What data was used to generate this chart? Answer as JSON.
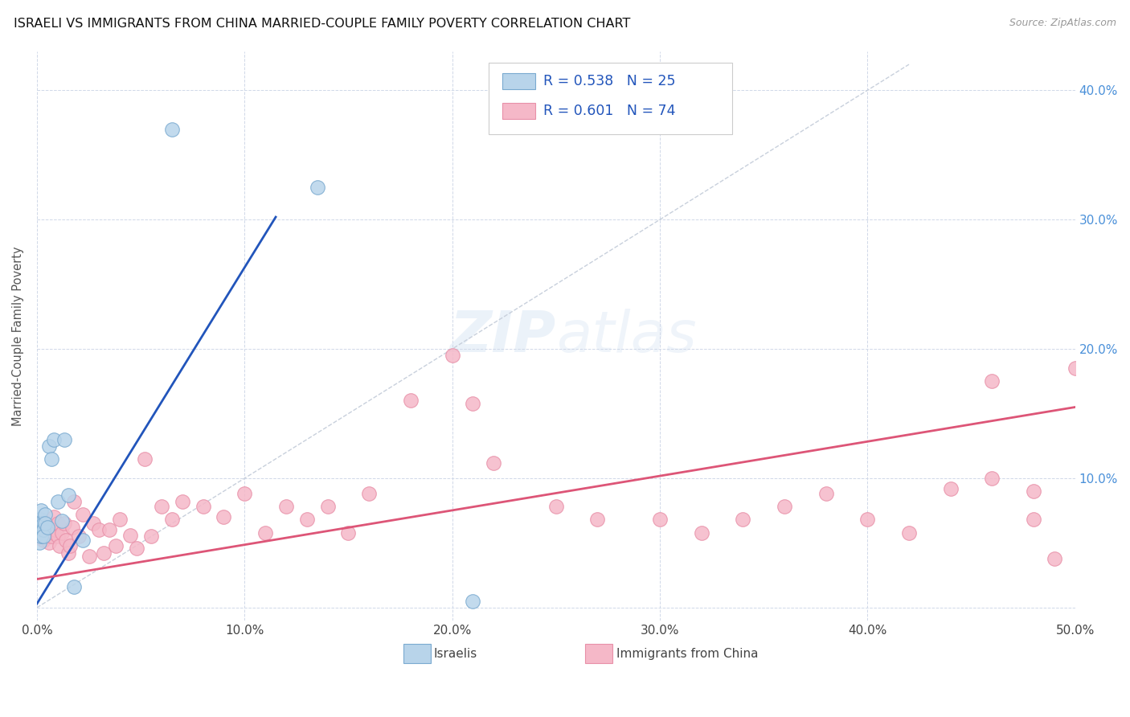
{
  "title": "ISRAELI VS IMMIGRANTS FROM CHINA MARRIED-COUPLE FAMILY POVERTY CORRELATION CHART",
  "source": "Source: ZipAtlas.com",
  "ylabel": "Married-Couple Family Poverty",
  "xlim": [
    0,
    0.5
  ],
  "ylim": [
    -0.01,
    0.43
  ],
  "xticks": [
    0.0,
    0.1,
    0.2,
    0.3,
    0.4,
    0.5
  ],
  "yticks": [
    0.0,
    0.1,
    0.2,
    0.3,
    0.4
  ],
  "xtick_labels": [
    "0.0%",
    "10.0%",
    "20.0%",
    "30.0%",
    "40.0%",
    "50.0%"
  ],
  "ytick_labels_right": [
    "",
    "10.0%",
    "20.0%",
    "30.0%",
    "40.0%"
  ],
  "legend_labels": [
    "Israelis",
    "Immigrants from China"
  ],
  "israeli_color": "#b8d4ea",
  "china_color": "#f5b8c8",
  "israeli_edge": "#7aaad0",
  "china_edge": "#e890a8",
  "blue_line_color": "#2255bb",
  "pink_line_color": "#dd5577",
  "diag_line_color": "#c8d0dc",
  "R_israeli": 0.538,
  "N_israeli": 25,
  "R_china": 0.601,
  "N_china": 74,
  "israeli_x": [
    0.001,
    0.001,
    0.001,
    0.002,
    0.002,
    0.002,
    0.002,
    0.003,
    0.003,
    0.003,
    0.004,
    0.004,
    0.005,
    0.006,
    0.007,
    0.008,
    0.01,
    0.012,
    0.013,
    0.015,
    0.018,
    0.022,
    0.065,
    0.135,
    0.21
  ],
  "israeli_y": [
    0.068,
    0.058,
    0.05,
    0.075,
    0.065,
    0.06,
    0.055,
    0.065,
    0.06,
    0.055,
    0.072,
    0.065,
    0.062,
    0.125,
    0.115,
    0.13,
    0.082,
    0.067,
    0.13,
    0.087,
    0.016,
    0.052,
    0.37,
    0.325,
    0.005
  ],
  "china_x": [
    0.001,
    0.001,
    0.002,
    0.002,
    0.002,
    0.003,
    0.003,
    0.003,
    0.004,
    0.004,
    0.005,
    0.005,
    0.006,
    0.006,
    0.007,
    0.007,
    0.008,
    0.008,
    0.009,
    0.01,
    0.01,
    0.011,
    0.012,
    0.013,
    0.014,
    0.015,
    0.016,
    0.017,
    0.018,
    0.02,
    0.022,
    0.025,
    0.027,
    0.03,
    0.032,
    0.035,
    0.038,
    0.04,
    0.045,
    0.048,
    0.052,
    0.055,
    0.06,
    0.065,
    0.07,
    0.08,
    0.09,
    0.1,
    0.11,
    0.12,
    0.13,
    0.14,
    0.15,
    0.16,
    0.18,
    0.2,
    0.21,
    0.22,
    0.25,
    0.27,
    0.3,
    0.32,
    0.34,
    0.36,
    0.38,
    0.4,
    0.42,
    0.44,
    0.46,
    0.48,
    0.49,
    0.5,
    0.48,
    0.46
  ],
  "china_y": [
    0.06,
    0.055,
    0.068,
    0.062,
    0.055,
    0.062,
    0.058,
    0.052,
    0.06,
    0.055,
    0.062,
    0.055,
    0.058,
    0.05,
    0.06,
    0.055,
    0.07,
    0.058,
    0.06,
    0.065,
    0.055,
    0.048,
    0.058,
    0.065,
    0.052,
    0.042,
    0.048,
    0.062,
    0.082,
    0.055,
    0.072,
    0.04,
    0.065,
    0.06,
    0.042,
    0.06,
    0.048,
    0.068,
    0.056,
    0.046,
    0.115,
    0.055,
    0.078,
    0.068,
    0.082,
    0.078,
    0.07,
    0.088,
    0.058,
    0.078,
    0.068,
    0.078,
    0.058,
    0.088,
    0.16,
    0.195,
    0.158,
    0.112,
    0.078,
    0.068,
    0.068,
    0.058,
    0.068,
    0.078,
    0.088,
    0.068,
    0.058,
    0.092,
    0.175,
    0.068,
    0.038,
    0.185,
    0.09,
    0.1
  ],
  "blue_line_x": [
    0.0,
    0.115
  ],
  "blue_line_y": [
    0.003,
    0.302
  ],
  "pink_line_x": [
    0.0,
    0.5
  ],
  "pink_line_y": [
    0.022,
    0.155
  ]
}
